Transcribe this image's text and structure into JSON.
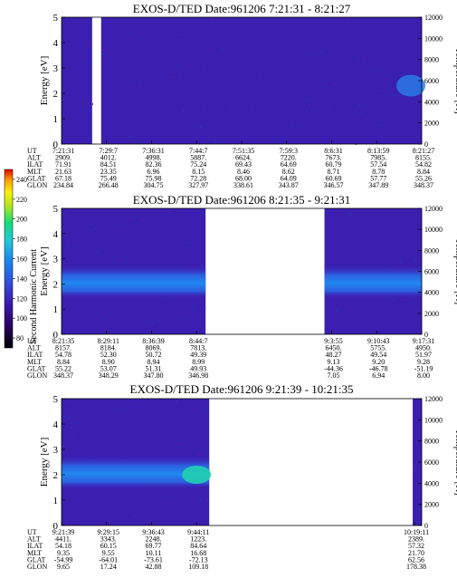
{
  "colorbar": {
    "label": "Second Harmonic Current",
    "ticks": [
      "80",
      "100",
      "120",
      "140",
      "160",
      "180",
      "200",
      "220",
      "240"
    ],
    "colors": [
      "#000000",
      "#2a0060",
      "#3b1ab0",
      "#2f55e0",
      "#1a8cf0",
      "#22c8d8",
      "#10e07a",
      "#b8e818",
      "#f8f00a",
      "#f8a000",
      "#f05000",
      "#e80000"
    ]
  },
  "chart_data": [
    {
      "type": "heatmap",
      "title": "EXOS-D/TED   Date:961206  7:21:31 - 8:21:27",
      "ylabel": "Energy [eV]",
      "y2label": "Temperature [K]",
      "ylim": [
        0,
        5
      ],
      "y_ticks": [
        "0",
        "1",
        "2",
        "3",
        "4",
        "5"
      ],
      "y2lim": [
        0,
        12000
      ],
      "y2_ticks": [
        "0",
        "2000",
        "4000",
        "6000",
        "8000",
        "10000",
        "12000"
      ],
      "bands": [
        {
          "x0": 0.0,
          "x1": 0.085,
          "level": 0.18
        },
        {
          "x0": 0.11,
          "x1": 1.0,
          "level": 0.18
        }
      ],
      "orbit": {
        "labels": [
          "UT",
          "ALT",
          "ILAT",
          "MLT",
          "GLAT",
          "GLON"
        ],
        "columns": [
          {
            "pos": 0.0,
            "values": [
              "7:21:31",
              "2909.",
              "71.91",
              "21.63",
              "67.18",
              "234.84"
            ]
          },
          {
            "pos": 0.125,
            "values": [
              "7:29:7",
              "4012.",
              "84.51",
              "23.35",
              "75.49",
              "266.48"
            ]
          },
          {
            "pos": 0.25,
            "values": [
              "7:36:31",
              "4998.",
              "82.36",
              "6.96",
              "75.98",
              "304.75"
            ]
          },
          {
            "pos": 0.375,
            "values": [
              "7:44:7",
              "5887.",
              "75.24",
              "8.15",
              "72.28",
              "327.97"
            ]
          },
          {
            "pos": 0.5,
            "values": [
              "7:51:35",
              "6624.",
              "69.43",
              "8.46",
              "68.00",
              "338.61"
            ]
          },
          {
            "pos": 0.625,
            "values": [
              "7:59:3",
              "7220.",
              "64.69",
              "8.62",
              "64.09",
              "343.87"
            ]
          },
          {
            "pos": 0.75,
            "values": [
              "8:6:31",
              "7673.",
              "60.79",
              "8.71",
              "60.69",
              "346.57"
            ]
          },
          {
            "pos": 0.875,
            "values": [
              "8:13:59",
              "7985.",
              "57.54",
              "8.78",
              "57.77",
              "347.89"
            ]
          },
          {
            "pos": 1.0,
            "values": [
              "8:21:27",
              "8155.",
              "54.82",
              "8.84",
              "55.26",
              "348.37"
            ]
          }
        ]
      }
    },
    {
      "type": "heatmap",
      "title": "EXOS-D/TED   Date:961206  8:21:35 - 9:21:31",
      "ylabel": "Energy [eV]",
      "y2label": "Temperature [K]",
      "ylim": [
        0,
        5
      ],
      "y_ticks": [
        "0",
        "1",
        "2",
        "3",
        "4",
        "5"
      ],
      "y2lim": [
        0,
        12000
      ],
      "y2_ticks": [
        "0",
        "2000",
        "4000",
        "6000",
        "8000",
        "10000",
        "12000"
      ],
      "bands": [
        {
          "x0": 0.0,
          "x1": 0.4,
          "level": 0.18
        },
        {
          "x0": 0.73,
          "x1": 1.0,
          "level": 0.18
        }
      ],
      "orbit": {
        "labels": [
          "UT",
          "ALT",
          "ILAT",
          "MLT",
          "GLAT",
          "GLON"
        ],
        "columns": [
          {
            "pos": 0.0,
            "values": [
              "8:21:35",
              "8157.",
              "54.78",
              "8.84",
              "55.22",
              "348.37"
            ]
          },
          {
            "pos": 0.125,
            "values": [
              "8:29:11",
              "8184.",
              "52.30",
              "8.90",
              "53.07",
              "348.29"
            ]
          },
          {
            "pos": 0.25,
            "values": [
              "8:36:39",
              "8069.",
              "50.72",
              "8.94",
              "51.31",
              "347.80"
            ]
          },
          {
            "pos": 0.375,
            "values": [
              "8:44:7",
              "7813.",
              "49.39",
              "8.99",
              "49.93",
              "346.98"
            ]
          },
          {
            "pos": 0.75,
            "values": [
              "9:3:55",
              "6450.",
              "48.27",
              "9.13",
              "-44.36",
              "7.05"
            ]
          },
          {
            "pos": 0.875,
            "values": [
              "9:10:43",
              "5755.",
              "49.54",
              "9.20",
              "-46.78",
              "6.94"
            ]
          },
          {
            "pos": 1.0,
            "values": [
              "9:17:31",
              "4950.",
              "51.97",
              "9.28",
              "-51.19",
              "8.00"
            ]
          }
        ]
      }
    },
    {
      "type": "heatmap",
      "title": "EXOS-D/TED   Date:961206  9:21:39 - 10:21:35",
      "ylabel": "Energy [eV]",
      "y2label": "Temperature [K]",
      "ylim": [
        0,
        5
      ],
      "y_ticks": [
        "0",
        "1",
        "2",
        "3",
        "4",
        "5"
      ],
      "y2lim": [
        0,
        12000
      ],
      "y2_ticks": [
        "0",
        "2000",
        "4000",
        "6000",
        "8000",
        "10000",
        "12000"
      ],
      "bands": [
        {
          "x0": 0.0,
          "x1": 0.41,
          "level": 0.18
        },
        {
          "x0": 0.975,
          "x1": 1.0,
          "level": 0.18
        }
      ],
      "orbit": {
        "labels": [
          "UT",
          "ALT",
          "ILAT",
          "MLT",
          "GLAT",
          "GLON"
        ],
        "columns": [
          {
            "pos": 0.0,
            "values": [
              "9:21:39",
              "4411.",
              "54.18",
              "9.35",
              "-54.99",
              "9.65"
            ]
          },
          {
            "pos": 0.125,
            "values": [
              "9:29:15",
              "3343.",
              "60.15",
              "9.55",
              "-64.01",
              "17.24"
            ]
          },
          {
            "pos": 0.25,
            "values": [
              "9:36:43",
              "2248.",
              "69.77",
              "10.11",
              "-73.61",
              "42.88"
            ]
          },
          {
            "pos": 0.375,
            "values": [
              "9:44:11",
              "1223.",
              "84.64",
              "16.68",
              "-72.13",
              "109.18"
            ]
          },
          {
            "pos": 0.98,
            "values": [
              "10:19:11",
              "2389.",
              "57.32",
              "21.70",
              "62.56",
              "178.38"
            ]
          }
        ]
      }
    }
  ]
}
